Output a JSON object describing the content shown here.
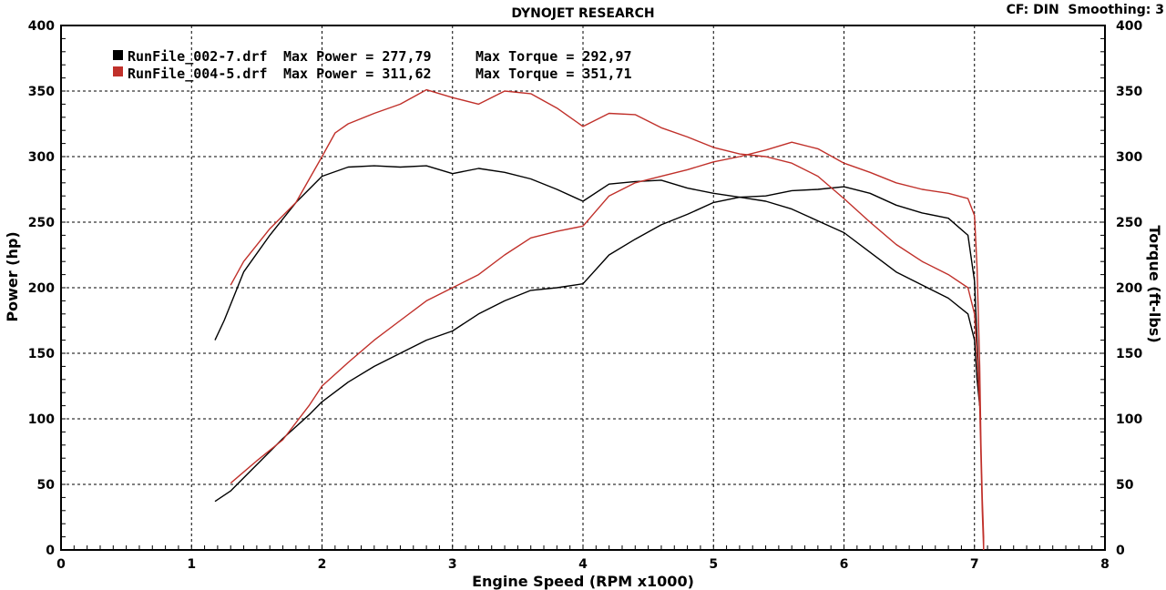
{
  "chart_data": {
    "type": "line",
    "title": "DYNOJET RESEARCH",
    "subtitle": "CF: DIN  Smoothing: 3",
    "xlabel": "Engine Speed (RPM x1000)",
    "ylabel": "Power (hp)",
    "y2label": "Torque (ft-lbs)",
    "xlim": [
      0,
      8
    ],
    "ylim": [
      0,
      400
    ],
    "y2lim": [
      0,
      400
    ],
    "x_ticks": [
      "0",
      "1",
      "2",
      "3",
      "4",
      "5",
      "6",
      "7",
      "8"
    ],
    "y_ticks": [
      "0",
      "50",
      "100",
      "150",
      "200",
      "250",
      "300",
      "350",
      "400"
    ],
    "grid": true,
    "legend_position": "top-left",
    "colors": {
      "run1": "#000000",
      "run2": "#c0302a",
      "grid": "#000000",
      "axis_bg": "#ffffff"
    },
    "legend": [
      {
        "name": "RunFile_002-7.drf",
        "power_text": "Max Power = 277,79",
        "torque_text": "Max Torque = 292,97",
        "color": "#000000"
      },
      {
        "name": "RunFile_004-5.drf",
        "power_text": "Max Power = 311,62",
        "torque_text": "Max Torque = 351,71",
        "color": "#c0302a"
      }
    ],
    "series": [
      {
        "name": "RunFile_002-7.drf",
        "measure": "Power",
        "color": "#000000",
        "x": [
          1.18,
          1.3,
          1.5,
          1.7,
          1.9,
          2.0,
          2.2,
          2.4,
          2.6,
          2.8,
          3.0,
          3.2,
          3.4,
          3.6,
          3.8,
          4.0,
          4.2,
          4.4,
          4.6,
          4.8,
          5.0,
          5.2,
          5.4,
          5.6,
          5.8,
          6.0,
          6.2,
          6.4,
          6.6,
          6.8,
          6.95,
          7.0,
          7.02,
          7.04
        ],
        "y": [
          37,
          45,
          65,
          85,
          103,
          113,
          128,
          140,
          150,
          160,
          167,
          180,
          190,
          198,
          200,
          203,
          225,
          237,
          248,
          256,
          265,
          269,
          270,
          274,
          275,
          277,
          272,
          263,
          257,
          253,
          240,
          205,
          160,
          110
        ]
      },
      {
        "name": "RunFile_002-7.drf",
        "measure": "Torque",
        "color": "#000000",
        "x": [
          1.18,
          1.25,
          1.4,
          1.6,
          1.8,
          2.0,
          2.2,
          2.4,
          2.6,
          2.8,
          3.0,
          3.2,
          3.4,
          3.6,
          3.8,
          4.0,
          4.2,
          4.4,
          4.6,
          4.8,
          5.0,
          5.2,
          5.4,
          5.6,
          5.8,
          6.0,
          6.2,
          6.4,
          6.6,
          6.8,
          6.95,
          7.0,
          7.02,
          7.04
        ],
        "y": [
          160,
          175,
          212,
          240,
          265,
          285,
          292,
          293,
          292,
          293,
          287,
          291,
          288,
          283,
          275,
          266,
          279,
          281,
          282,
          276,
          272,
          269,
          266,
          260,
          251,
          242,
          227,
          212,
          202,
          192,
          180,
          160,
          130,
          110
        ]
      },
      {
        "name": "RunFile_004-5.drf",
        "measure": "Power",
        "color": "#c0302a",
        "x": [
          1.3,
          1.5,
          1.7,
          1.9,
          2.0,
          2.2,
          2.4,
          2.6,
          2.8,
          3.0,
          3.2,
          3.4,
          3.6,
          3.8,
          4.0,
          4.2,
          4.4,
          4.6,
          4.8,
          5.0,
          5.2,
          5.4,
          5.6,
          5.8,
          6.0,
          6.2,
          6.4,
          6.6,
          6.8,
          6.95,
          7.0,
          7.02,
          7.04,
          7.05,
          7.06,
          7.07,
          7.07
        ],
        "y": [
          51,
          68,
          84,
          110,
          125,
          143,
          160,
          175,
          190,
          200,
          210,
          225,
          238,
          243,
          247,
          270,
          280,
          285,
          290,
          296,
          300,
          305,
          311,
          306,
          295,
          288,
          280,
          275,
          272,
          268,
          255,
          215,
          140,
          80,
          40,
          10,
          0
        ]
      },
      {
        "name": "RunFile_004-5.drf",
        "measure": "Torque",
        "color": "#c0302a",
        "x": [
          1.3,
          1.4,
          1.6,
          1.8,
          2.0,
          2.1,
          2.2,
          2.4,
          2.6,
          2.8,
          3.0,
          3.2,
          3.4,
          3.6,
          3.8,
          4.0,
          4.2,
          4.4,
          4.6,
          4.8,
          5.0,
          5.2,
          5.4,
          5.6,
          5.8,
          6.0,
          6.2,
          6.4,
          6.6,
          6.8,
          6.95,
          7.0,
          7.02,
          7.04,
          7.05,
          7.06,
          7.07
        ],
        "y": [
          202,
          220,
          245,
          265,
          300,
          318,
          325,
          333,
          340,
          351,
          345,
          340,
          350,
          348,
          337,
          323,
          333,
          332,
          322,
          315,
          307,
          302,
          300,
          295,
          285,
          268,
          250,
          233,
          220,
          210,
          200,
          180,
          150,
          110,
          70,
          30,
          0
        ]
      }
    ]
  }
}
